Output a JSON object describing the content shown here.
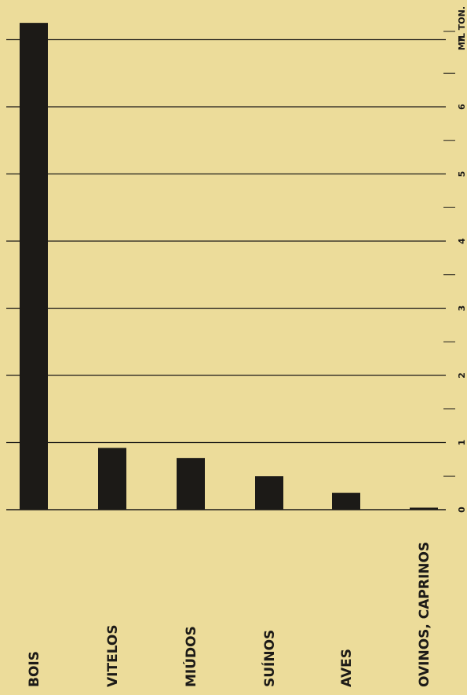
{
  "chart_data": {
    "type": "bar",
    "orientation": "vertical bars, whole figure rotated 90° (labels read bottom-to-top)",
    "categories": [
      "BOIS",
      "VITELOS",
      "MIÚDOS",
      "SUÍNOS",
      "AVES",
      "OVINOS, CAPRINOS"
    ],
    "values": [
      7.25,
      0.92,
      0.77,
      0.5,
      0.25,
      0.03
    ],
    "unit_label": "MIL TON.",
    "ylim": [
      0,
      7.5
    ],
    "yticks": [
      "0",
      "1",
      "2",
      "3",
      "4",
      "5",
      "6",
      "7"
    ],
    "grid": true,
    "colors": {
      "background": "#ecdc9a",
      "bar": "#1c1a17",
      "line": "#1c1a17"
    }
  }
}
